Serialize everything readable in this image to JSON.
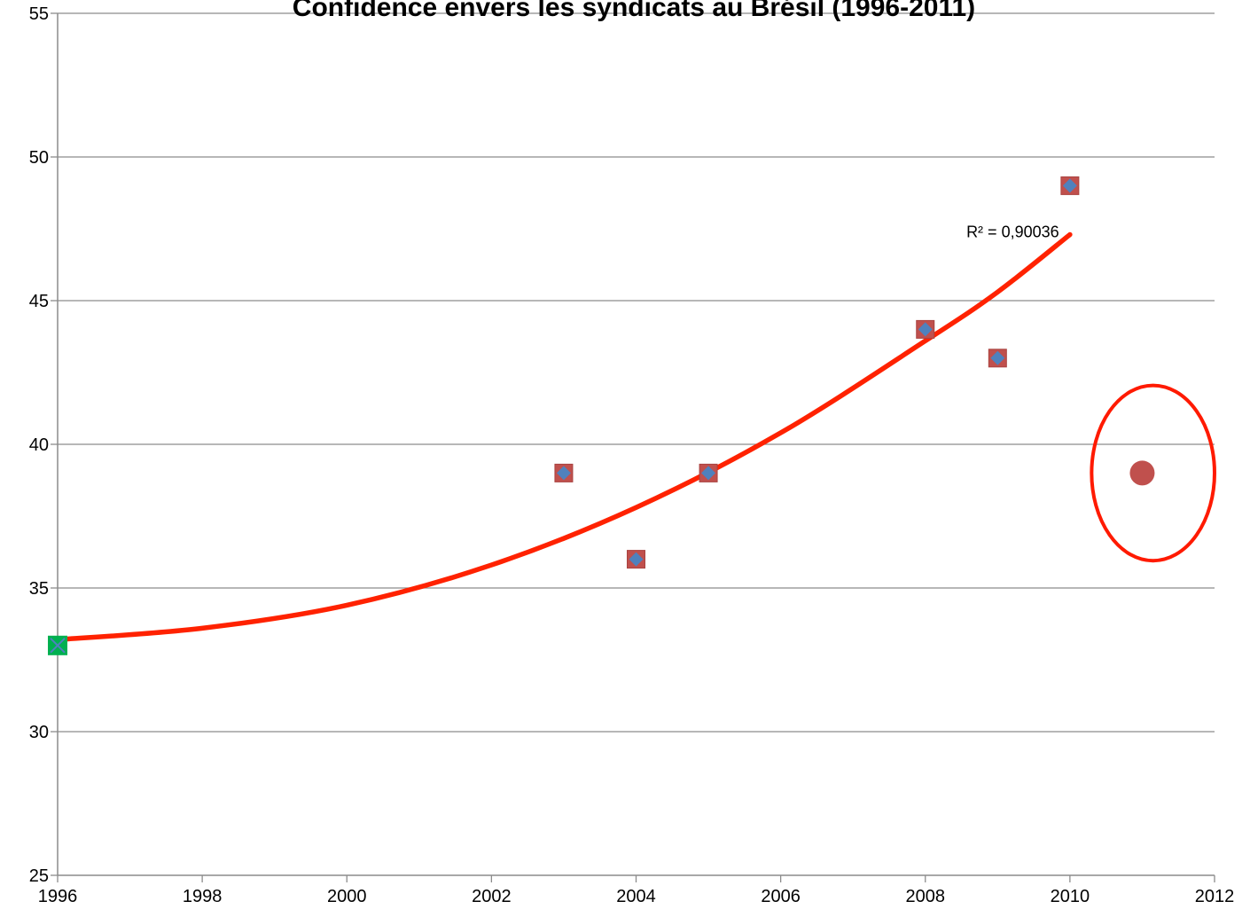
{
  "chart_data": {
    "type": "scatter",
    "title": "Confidence envers les syndicats  au Brésil (1996-2011)",
    "xlabel": "",
    "ylabel": "",
    "xlim": [
      1996,
      2012
    ],
    "ylim": [
      25,
      55
    ],
    "x_ticks": [
      1996,
      1998,
      2000,
      2002,
      2004,
      2006,
      2008,
      2010,
      2012
    ],
    "y_ticks": [
      25,
      30,
      35,
      40,
      45,
      50,
      55
    ],
    "grid": "horizontal",
    "legend": "none",
    "series": [
      {
        "marker": "square-with-diamond",
        "color": "#c0504d",
        "inner_color": "#4f81bd",
        "points": [
          [
            2003,
            39
          ],
          [
            2004,
            36
          ],
          [
            2005,
            39
          ],
          [
            2008,
            44
          ],
          [
            2009,
            43
          ],
          [
            2010,
            49
          ]
        ]
      },
      {
        "marker": "square-with-x",
        "color": "#00b050",
        "points": [
          [
            1996,
            33
          ]
        ]
      },
      {
        "marker": "circle",
        "color": "#c0504d",
        "points": [
          [
            2011,
            39
          ]
        ]
      }
    ],
    "trendline": {
      "type": "polynomial",
      "color": "#ff2200",
      "points": [
        [
          1996,
          33.2
        ],
        [
          1998,
          33.6
        ],
        [
          2000,
          34.4
        ],
        [
          2002,
          35.8
        ],
        [
          2004,
          37.8
        ],
        [
          2006,
          40.4
        ],
        [
          2008,
          43.6
        ],
        [
          2009,
          45.3
        ],
        [
          2010,
          47.3
        ]
      ],
      "label": "R² = 0,90036",
      "label_anchor": [
        2009.85,
        47.2
      ]
    },
    "highlight": {
      "shape": "ellipse",
      "color": "#ff1a00",
      "center": [
        2011.15,
        39
      ],
      "radius_x": 0.85,
      "radius_y": 3.05
    }
  }
}
